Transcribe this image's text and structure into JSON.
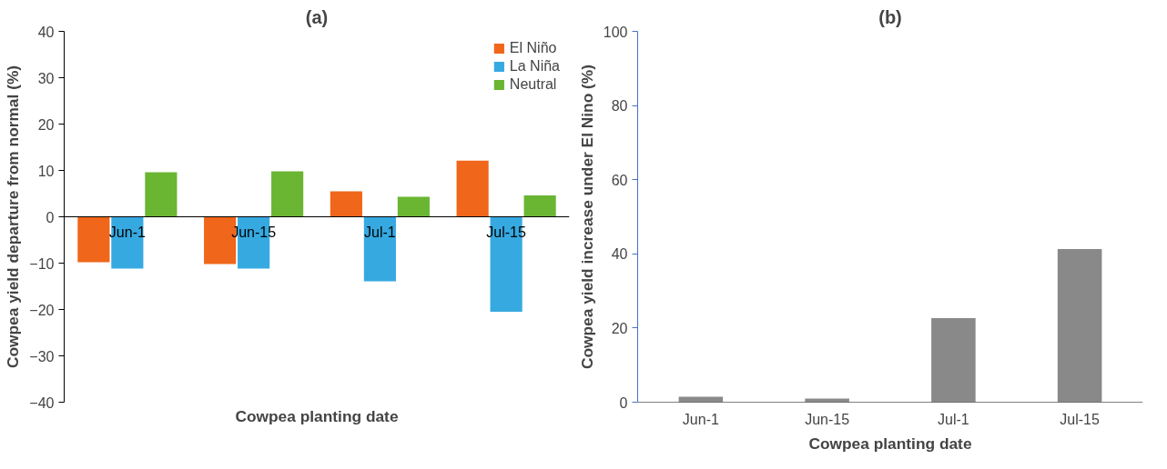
{
  "chart_data": [
    {
      "type": "bar",
      "title": "(a)",
      "xlabel": "Cowpea planting date",
      "ylabel": "Cowpea yield departure from normal (%)",
      "categories": [
        "Jun-1",
        "Jun-15",
        "Jul-1",
        "Jul-15"
      ],
      "ylim": [
        -40,
        40
      ],
      "yticks": [
        -40,
        -30,
        -20,
        -10,
        0,
        10,
        20,
        30,
        40
      ],
      "grid": false,
      "legend": "top right",
      "series": [
        {
          "name": "El Niño",
          "color": "#f0661a",
          "values": [
            -9.8,
            -10.2,
            5.5,
            12.1
          ]
        },
        {
          "name": "La Niña",
          "color": "#36a9e1",
          "values": [
            -11.2,
            -11.2,
            -13.9,
            -20.5
          ]
        },
        {
          "name": "Neutral",
          "color": "#6ab633",
          "values": [
            9.6,
            9.8,
            4.3,
            4.6
          ]
        }
      ]
    },
    {
      "type": "bar",
      "title": "(b)",
      "xlabel": "Cowpea planting date",
      "ylabel": "Cowpea yield increase under El Nino (%)",
      "categories": [
        "Jun-1",
        "Jun-15",
        "Jul-1",
        "Jul-15"
      ],
      "ylim": [
        0,
        100
      ],
      "yticks": [
        0,
        20,
        40,
        60,
        80,
        100
      ],
      "grid": false,
      "series": [
        {
          "color": "#898989",
          "values": [
            1.5,
            1.0,
            22.7,
            41.3
          ]
        }
      ]
    }
  ]
}
